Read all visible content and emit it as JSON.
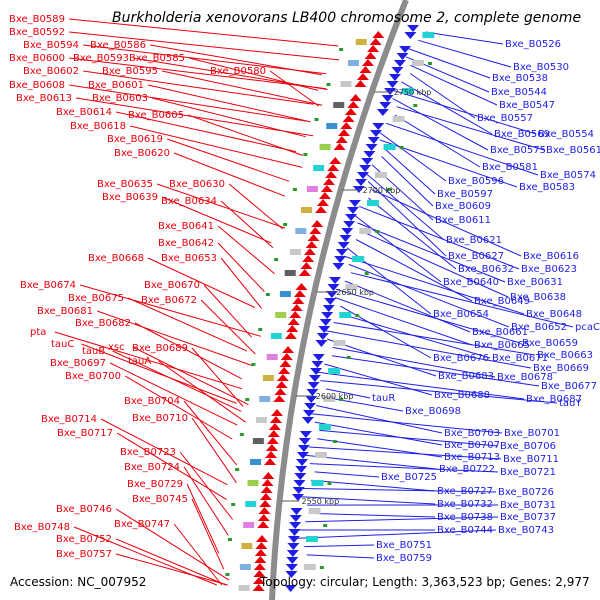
{
  "title": "Burkholderia xenovorans LB400 chromosome 2, complete genome",
  "accession": "Accession: NC_007952",
  "topology": "Topology: circular; Length: 3,363,523 bp; Genes: 2,977",
  "colors": {
    "reverse_strand": "#e8000b",
    "forward_strand": "#1e1ee6",
    "backbone": "#8c8c8c",
    "marker": "#2a9a2a"
  },
  "kbp_markers": [
    "2750 kbp",
    "2700 kbp",
    "2650 kbp",
    "2600 kbp",
    "2550 kbp"
  ],
  "left_labels": [
    "Bxe_B0589",
    "Bxe_B0592",
    "Bxe_B0594",
    "Bxe_B0586",
    "Bxe_B0600",
    "Bxe_B0593",
    "Bxe_B0585",
    "Bxe_B0602",
    "Bxe_B0595",
    "Bxe_B0580",
    "Bxe_B0608",
    "Bxe_B0601",
    "Bxe_B0613",
    "Bxe_B0603",
    "Bxe_B0614",
    "Bxe_B0605",
    "Bxe_B0618",
    "Bxe_B0619",
    "Bxe_B0620",
    "Bxe_B0635",
    "Bxe_B0630",
    "Bxe_B0639",
    "Bxe_B0634",
    "Bxe_B0641",
    "Bxe_B0642",
    "Bxe_B0668",
    "Bxe_B0653",
    "Bxe_B0674",
    "Bxe_B0670",
    "Bxe_B0675",
    "Bxe_B0672",
    "Bxe_B0681",
    "Bxe_B0682",
    "pta",
    "xsc",
    "Bxe_B0689",
    "tauC",
    "tauB",
    "tauA",
    "Bxe_B0697",
    "Bxe_B0700",
    "Bxe_B0704",
    "Bxe_B0710",
    "Bxe_B0714",
    "Bxe_B0717",
    "Bxe_B0723",
    "Bxe_B0724",
    "Bxe_B0729",
    "Bxe_B0745",
    "Bxe_B0746",
    "Bxe_B0747",
    "Bxe_B0748",
    "Bxe_B0752",
    "Bxe_B0757"
  ],
  "right_labels": [
    "Bxe_B0526",
    "Bxe_B0530",
    "Bxe_B0538",
    "Bxe_B0544",
    "Bxe_B0547",
    "Bxe_B0557",
    "Bxe_B0569",
    "Bxe_B0554",
    "Bxe_B0575",
    "Bxe_B0561",
    "Bxe_B0581",
    "Bxe_B0574",
    "Bxe_B0596",
    "Bxe_B0583",
    "Bxe_B0597",
    "Bxe_B0609",
    "Bxe_B0611",
    "Bxe_B0621",
    "Bxe_B0627",
    "Bxe_B0616",
    "Bxe_B0632",
    "Bxe_B0623",
    "Bxe_B0640",
    "Bxe_B0631",
    "Bxe_B0638",
    "Bxe_B0649",
    "Bxe_B0654",
    "Bxe_B0648",
    "Bxe_B0652",
    "pcaC",
    "Bxe_B0661",
    "Bxe_B0659",
    "Bxe_B0665",
    "Bxe_B0676",
    "Bxe_B0671",
    "Bxe_B0663",
    "Bxe_B0669",
    "Bxe_B0683",
    "Bxe_B0678",
    "Bxe_B0677",
    "Bxe_B0688",
    "Bxe_B0687",
    "tauY",
    "tauR",
    "Bxe_B0698",
    "Bxe_B0703",
    "Bxe_B0701",
    "Bxe_B0707",
    "Bxe_B0706",
    "Bxe_B0713",
    "Bxe_B0711",
    "Bxe_B0722",
    "Bxe_B0721",
    "Bxe_B0725",
    "Bxe_B0727",
    "Bxe_B0726",
    "Bxe_B0732",
    "Bxe_B0731",
    "Bxe_B0738",
    "Bxe_B0737",
    "Bxe_B0744",
    "Bxe_B0743",
    "Bxe_B0751",
    "Bxe_B0759"
  ]
}
